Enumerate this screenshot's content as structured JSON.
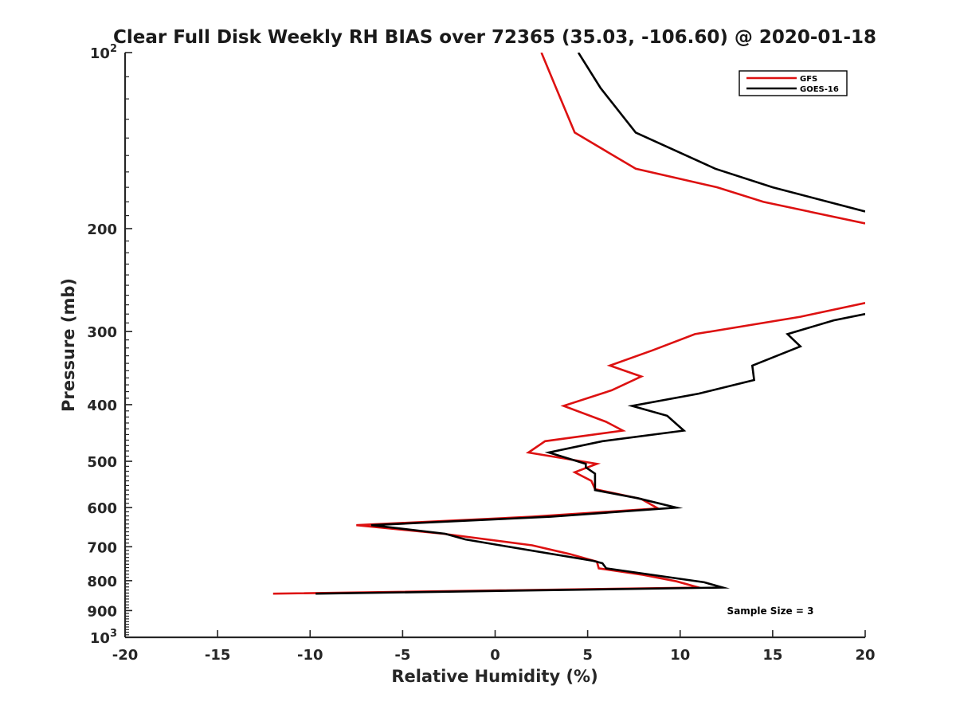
{
  "chart_data": {
    "type": "line",
    "title": "Clear Full Disk Weekly RH BIAS over 72365 (35.03, -106.60) @ 2020-01-18",
    "xlabel": "Relative Humidity (%)",
    "ylabel": "Pressure (mb)",
    "xlim": [
      -20,
      20
    ],
    "ylim": [
      100,
      1000
    ],
    "y_scale": "log",
    "y_reversed": true,
    "grid": false,
    "x_ticks": [
      "-20",
      "-15",
      "-10",
      "-5",
      "0",
      "5",
      "10",
      "15",
      "20"
    ],
    "y_ticks": [
      {
        "value": 100,
        "base": "10",
        "exp": "2"
      },
      {
        "value": 200,
        "label": "200"
      },
      {
        "value": 300,
        "label": "300"
      },
      {
        "value": 400,
        "label": "400"
      },
      {
        "value": 500,
        "label": "500"
      },
      {
        "value": 600,
        "label": "600"
      },
      {
        "value": 700,
        "label": "700"
      },
      {
        "value": 800,
        "label": "800"
      },
      {
        "value": 900,
        "label": "900"
      },
      {
        "value": 1000,
        "base": "10",
        "exp": "3"
      }
    ],
    "legend_position": "top-right",
    "annotation": "Sample Size = 3",
    "series": [
      {
        "name": "GFS",
        "color": "#dd1111",
        "segments": [
          [
            [
              2.5,
              100
            ],
            [
              3.3,
              115
            ],
            [
              4.3,
              137
            ],
            [
              7.6,
              158
            ],
            [
              12.0,
              170
            ],
            [
              14.5,
              180
            ],
            [
              20.0,
              196
            ]
          ],
          [
            [
              20.0,
              268
            ],
            [
              16.5,
              283
            ],
            [
              10.8,
              303
            ],
            [
              8.5,
              323
            ],
            [
              6.2,
              343
            ],
            [
              7.9,
              358
            ],
            [
              6.3,
              378
            ],
            [
              3.7,
              402
            ],
            [
              6.0,
              428
            ],
            [
              6.9,
              443
            ],
            [
              2.7,
              462
            ],
            [
              1.8,
              483
            ],
            [
              5.5,
              505
            ],
            [
              4.3,
              522
            ],
            [
              5.2,
              540
            ],
            [
              5.4,
              558
            ],
            [
              7.9,
              580
            ],
            [
              8.8,
              602
            ],
            [
              2.0,
              622
            ],
            [
              -7.5,
              643
            ],
            [
              -2.8,
              665
            ],
            [
              2.0,
              696
            ],
            [
              4.0,
              720
            ],
            [
              5.5,
              742
            ],
            [
              5.6,
              762
            ],
            [
              8.0,
              782
            ],
            [
              9.8,
              802
            ],
            [
              11.0,
              822
            ],
            [
              -12.0,
              842
            ]
          ]
        ]
      },
      {
        "name": "GOES-16",
        "color": "#000000",
        "segments": [
          [
            [
              4.5,
              100
            ],
            [
              5.7,
              115
            ],
            [
              7.6,
              137
            ],
            [
              11.9,
              158
            ],
            [
              15.0,
              170
            ],
            [
              20.0,
              187
            ]
          ],
          [
            [
              20.0,
              280
            ],
            [
              18.3,
              287
            ],
            [
              15.8,
              303
            ],
            [
              16.5,
              318
            ],
            [
              13.9,
              343
            ],
            [
              14.0,
              363
            ],
            [
              11.0,
              383
            ],
            [
              7.4,
              402
            ],
            [
              9.3,
              418
            ],
            [
              10.2,
              443
            ],
            [
              5.8,
              462
            ],
            [
              2.9,
              483
            ],
            [
              4.9,
              505
            ],
            [
              4.9,
              512
            ],
            [
              5.4,
              525
            ],
            [
              5.4,
              545
            ],
            [
              5.4,
              560
            ],
            [
              7.7,
              578
            ],
            [
              9.8,
              600
            ],
            [
              3.0,
              622
            ],
            [
              -6.7,
              643
            ],
            [
              -2.7,
              665
            ],
            [
              -1.6,
              680
            ],
            [
              0.5,
              698
            ],
            [
              5.3,
              740
            ],
            [
              5.8,
              747
            ],
            [
              6.0,
              762
            ],
            [
              8.5,
              782
            ],
            [
              11.3,
              805
            ],
            [
              12.3,
              822
            ],
            [
              -9.7,
              842
            ]
          ]
        ]
      }
    ]
  }
}
